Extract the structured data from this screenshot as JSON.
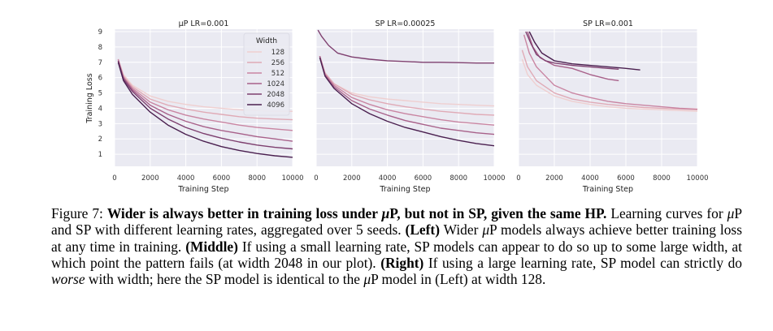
{
  "chart_data": [
    {
      "type": "line",
      "title": "μP LR=0.001",
      "xlabel": "Training Step",
      "ylabel": "Training Loss",
      "xlim": [
        0,
        10000
      ],
      "ylim": [
        0,
        9
      ],
      "xticks": [
        "0",
        "2000",
        "4000",
        "6000",
        "8000",
        "10000"
      ],
      "yticks": [
        "1",
        "2",
        "3",
        "4",
        "5",
        "6",
        "7",
        "8",
        "9"
      ],
      "grid": true,
      "legend": {
        "title": "Width",
        "placement": "upper-right",
        "entries": [
          "128",
          "256",
          "512",
          "1024",
          "2048",
          "4096"
        ]
      },
      "series": [
        {
          "name": "128",
          "color": "#efcfd0",
          "x": [
            200,
            500,
            1000,
            2000,
            3000,
            4000,
            5000,
            6000,
            7000,
            8000,
            9000,
            10000
          ],
          "y": [
            7.2,
            6.2,
            5.5,
            4.8,
            4.45,
            4.25,
            4.1,
            4.0,
            3.9,
            3.85,
            3.8,
            3.8
          ]
        },
        {
          "name": "256",
          "color": "#e0aab6",
          "x": [
            200,
            500,
            1000,
            2000,
            3000,
            4000,
            5000,
            6000,
            7000,
            8000,
            9000,
            10000
          ],
          "y": [
            7.2,
            6.1,
            5.4,
            4.6,
            4.2,
            3.95,
            3.75,
            3.6,
            3.45,
            3.35,
            3.3,
            3.25
          ]
        },
        {
          "name": "512",
          "color": "#c985a2",
          "x": [
            200,
            500,
            1000,
            2000,
            3000,
            4000,
            5000,
            6000,
            7000,
            8000,
            9000,
            10000
          ],
          "y": [
            7.2,
            6.0,
            5.3,
            4.4,
            3.9,
            3.55,
            3.3,
            3.1,
            2.9,
            2.75,
            2.65,
            2.55
          ]
        },
        {
          "name": "1024",
          "color": "#a8618a",
          "x": [
            200,
            500,
            1000,
            2000,
            3000,
            4000,
            5000,
            6000,
            7000,
            8000,
            9000,
            10000
          ],
          "y": [
            7.1,
            6.0,
            5.2,
            4.2,
            3.6,
            3.15,
            2.8,
            2.55,
            2.35,
            2.15,
            2.0,
            1.85
          ]
        },
        {
          "name": "2048",
          "color": "#7e3f6f",
          "x": [
            200,
            500,
            1000,
            2000,
            3000,
            4000,
            5000,
            6000,
            7000,
            8000,
            9000,
            10000
          ],
          "y": [
            7.1,
            5.9,
            5.1,
            4.0,
            3.3,
            2.75,
            2.35,
            2.05,
            1.8,
            1.6,
            1.45,
            1.35
          ]
        },
        {
          "name": "4096",
          "color": "#4a1f4f",
          "x": [
            200,
            500,
            1000,
            2000,
            3000,
            4000,
            5000,
            6000,
            7000,
            8000,
            9000,
            10000
          ],
          "y": [
            7.0,
            5.8,
            4.9,
            3.75,
            2.9,
            2.3,
            1.85,
            1.5,
            1.25,
            1.05,
            0.9,
            0.8
          ]
        }
      ]
    },
    {
      "type": "line",
      "title": "SP LR=0.00025",
      "xlabel": "Training Step",
      "xlim": [
        0,
        10000
      ],
      "ylim": [
        0,
        9
      ],
      "xticks": [
        "0",
        "2000",
        "4000",
        "6000",
        "8000",
        "10000"
      ],
      "grid": true,
      "series": [
        {
          "name": "128",
          "color": "#efcfd0",
          "x": [
            200,
            500,
            1000,
            2000,
            3000,
            4000,
            5000,
            6000,
            7000,
            8000,
            9000,
            10000
          ],
          "y": [
            7.4,
            6.3,
            5.6,
            5.0,
            4.75,
            4.6,
            4.5,
            4.4,
            4.3,
            4.25,
            4.2,
            4.15
          ]
        },
        {
          "name": "256",
          "color": "#e0aab6",
          "x": [
            200,
            500,
            1000,
            2000,
            3000,
            4000,
            5000,
            6000,
            7000,
            8000,
            9000,
            10000
          ],
          "y": [
            7.4,
            6.3,
            5.6,
            4.9,
            4.55,
            4.3,
            4.1,
            3.95,
            3.8,
            3.7,
            3.6,
            3.55
          ]
        },
        {
          "name": "512",
          "color": "#c985a2",
          "x": [
            200,
            500,
            1000,
            2000,
            3000,
            4000,
            5000,
            6000,
            7000,
            8000,
            9000,
            10000
          ],
          "y": [
            7.4,
            6.2,
            5.5,
            4.7,
            4.25,
            3.9,
            3.65,
            3.45,
            3.25,
            3.1,
            3.0,
            2.9
          ]
        },
        {
          "name": "1024",
          "color": "#a8618a",
          "x": [
            200,
            500,
            1000,
            2000,
            3000,
            4000,
            5000,
            6000,
            7000,
            8000,
            9000,
            10000
          ],
          "y": [
            7.4,
            6.2,
            5.4,
            4.5,
            3.95,
            3.55,
            3.2,
            2.95,
            2.7,
            2.55,
            2.4,
            2.3
          ]
        },
        {
          "name": "2048",
          "color": "#7e3f6f",
          "x": [
            100,
            300,
            700,
            1200,
            2000,
            3000,
            4000,
            5000,
            6000,
            7000,
            8000,
            9000,
            10000
          ],
          "y": [
            9.1,
            8.7,
            8.1,
            7.6,
            7.35,
            7.2,
            7.1,
            7.05,
            7.0,
            7.0,
            6.98,
            6.95,
            6.95
          ]
        },
        {
          "name": "4096",
          "color": "#4a1f4f",
          "x": [
            200,
            500,
            1000,
            2000,
            3000,
            4000,
            5000,
            6000,
            7000,
            8000,
            9000,
            10000
          ],
          "y": [
            7.3,
            6.1,
            5.3,
            4.3,
            3.65,
            3.15,
            2.75,
            2.45,
            2.15,
            1.9,
            1.7,
            1.55
          ]
        }
      ]
    },
    {
      "type": "line",
      "title": "SP LR=0.001",
      "xlabel": "Training Step",
      "xlim": [
        0,
        10000
      ],
      "ylim": [
        0,
        9
      ],
      "xticks": [
        "0",
        "2000",
        "4000",
        "6000",
        "8000",
        "10000"
      ],
      "grid": true,
      "series": [
        {
          "name": "128",
          "color": "#efcfd0",
          "x": [
            200,
            500,
            1000,
            2000,
            3000,
            4000,
            5000,
            6000,
            7000,
            8000,
            9000,
            10000
          ],
          "y": [
            7.2,
            6.2,
            5.5,
            4.8,
            4.45,
            4.25,
            4.1,
            4.0,
            3.95,
            3.9,
            3.85,
            3.8
          ]
        },
        {
          "name": "256",
          "color": "#e0aab6",
          "x": [
            200,
            500,
            1000,
            2000,
            3000,
            4000,
            5000,
            6000,
            7000,
            8000,
            9000,
            10000
          ],
          "y": [
            7.8,
            6.7,
            5.8,
            5.0,
            4.6,
            4.4,
            4.25,
            4.15,
            4.05,
            4.0,
            3.95,
            3.9
          ]
        },
        {
          "name": "512",
          "color": "#c985a2",
          "x": [
            300,
            600,
            1000,
            1500,
            2000,
            3000,
            4000,
            5000,
            6000,
            7000,
            8000,
            9000,
            10000
          ],
          "y": [
            8.8,
            7.6,
            6.7,
            6.1,
            5.5,
            5.0,
            4.7,
            4.45,
            4.3,
            4.2,
            4.1,
            4.0,
            3.95
          ]
        },
        {
          "name": "1024",
          "color": "#a8618a",
          "x": [
            500,
            800,
            1200,
            2000,
            3000,
            4000,
            5000,
            5600
          ],
          "y": [
            9.0,
            8.0,
            7.3,
            6.8,
            6.6,
            6.2,
            5.9,
            5.8
          ]
        },
        {
          "name": "2048",
          "color": "#7e3f6f",
          "x": [
            400,
            700,
            1000,
            1500,
            2000,
            3000,
            4000,
            5000,
            5600
          ],
          "y": [
            9.0,
            8.2,
            7.5,
            7.1,
            6.95,
            6.8,
            6.7,
            6.6,
            6.55
          ]
        },
        {
          "name": "4096",
          "color": "#4a1f4f",
          "x": [
            600,
            900,
            1300,
            2000,
            3000,
            4000,
            5000,
            6000,
            6800
          ],
          "y": [
            9.0,
            8.3,
            7.6,
            7.1,
            6.9,
            6.8,
            6.7,
            6.6,
            6.5
          ]
        }
      ]
    }
  ],
  "caption": {
    "label": "Figure 7:",
    "bold_pre": "Wider is always better in training loss under ",
    "bold_mu": "μ",
    "bold_post": "P, but not in SP, given the same HP.",
    "s1_pre": "Learning curves for ",
    "s1_mu": "μ",
    "s1_post": "P and SP with different learning rates, aggregated over 5 seeds.",
    "left_tag": "(Left)",
    "left_pre": "Wider",
    "left_mu": "μ",
    "left_post": "P models always achieve better training loss at any time in training.",
    "middle_tag": "(Middle)",
    "middle_text": "If using a small learning rate, SP models can appear to do so up to some large width, at which point the pattern fails (at width 2048 in our plot).",
    "right_tag": "(Right)",
    "right_pre": "If using a large learning rate, SP model can strictly do",
    "right_em": "worse",
    "right_mid": "with width; here the SP model is identical to the",
    "right_mu": "μ",
    "right_post": "P model in (Left) at width 128."
  }
}
